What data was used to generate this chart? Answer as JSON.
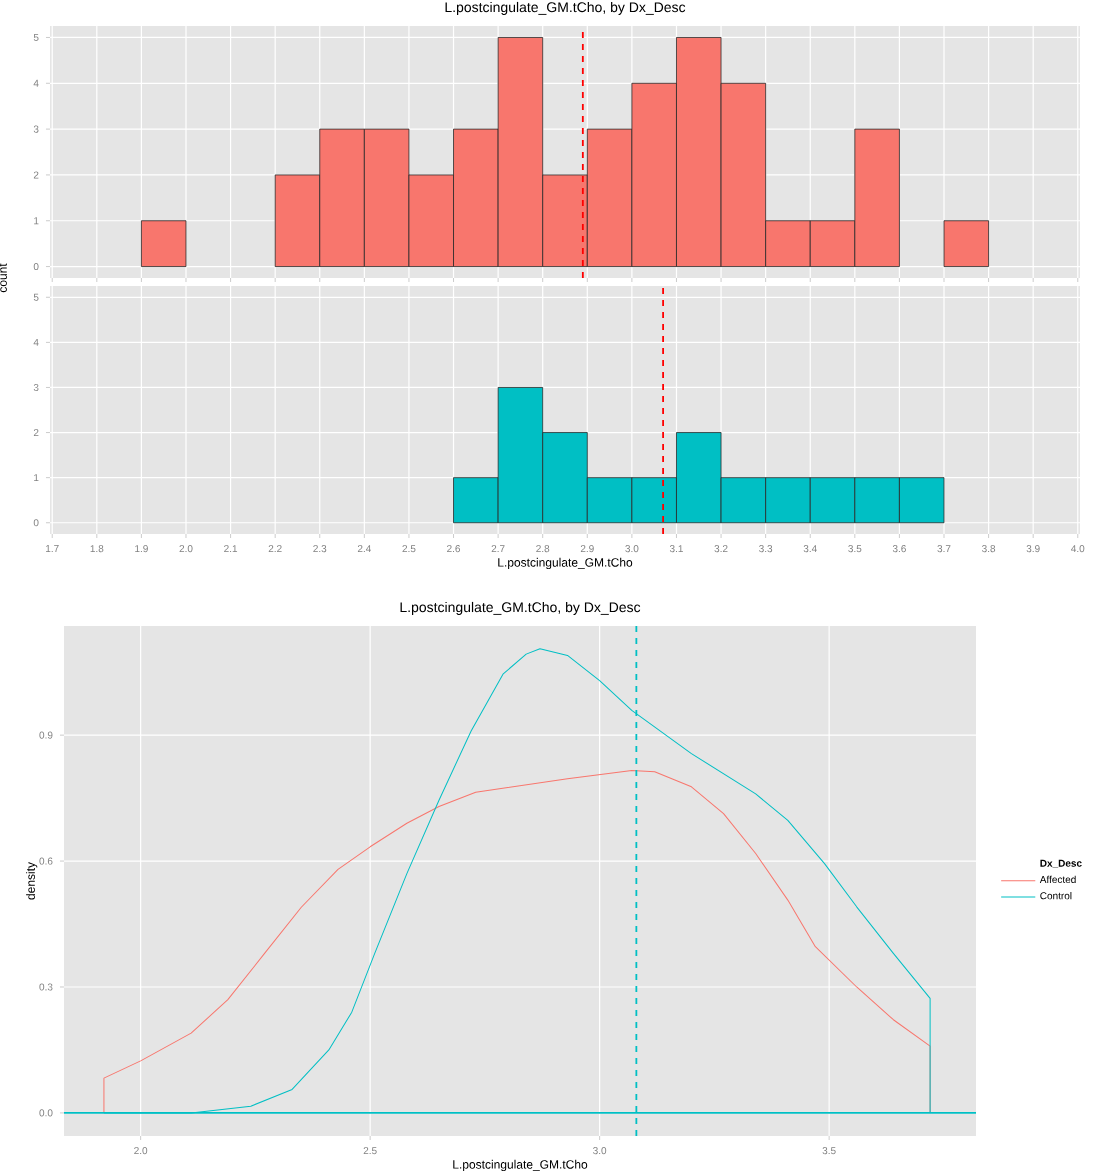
{
  "chart_data": [
    {
      "type": "histogram",
      "title": "L.postcingulate_GM.tCho, by Dx_Desc",
      "ylabel": "count",
      "tick_labels": "y",
      "color": "#f8766d",
      "grid": true,
      "bins": [
        1.8,
        1.9,
        2.0,
        2.1,
        2.2,
        2.3,
        2.4,
        2.5,
        2.6,
        2.7,
        2.8,
        2.9,
        3.0,
        3.1,
        3.2,
        3.3,
        3.4,
        3.5,
        3.6,
        3.7,
        3.8,
        3.9
      ],
      "values": [
        0,
        1,
        0,
        0,
        2,
        3,
        3,
        2,
        3,
        5,
        2,
        3,
        4,
        5,
        4,
        1,
        1,
        3,
        0,
        1,
        0
      ],
      "xlim": [
        1.695,
        4.005
      ],
      "xticks": [
        1.7,
        1.8,
        1.9,
        2,
        2.1,
        2.2,
        2.3,
        2.4,
        2.5,
        2.6,
        2.7,
        2.8,
        2.9,
        3,
        3.1,
        3.2,
        3.3,
        3.4,
        3.5,
        3.6,
        3.7,
        3.8,
        3.9,
        4
      ],
      "ylim": [
        -0.25,
        5.25
      ],
      "yticks": [
        0,
        1,
        2,
        3,
        4,
        5
      ],
      "ref_lines": [
        {
          "axis": "x",
          "value": 2.89,
          "color": "#ff0000",
          "line_style": "dashed"
        }
      ]
    },
    {
      "type": "histogram",
      "xlabel": "L.postcingulate_GM.tCho",
      "color": "#00bfc4",
      "grid": true,
      "bins": [
        1.8,
        1.9,
        2.0,
        2.1,
        2.2,
        2.3,
        2.4,
        2.5,
        2.6,
        2.7,
        2.8,
        2.9,
        3.0,
        3.1,
        3.2,
        3.3,
        3.4,
        3.5,
        3.6,
        3.7,
        3.8,
        3.9
      ],
      "values": [
        0,
        0,
        0,
        0,
        0,
        0,
        0,
        0,
        1,
        3,
        2,
        1,
        1,
        2,
        1,
        1,
        1,
        1,
        1,
        0,
        0
      ],
      "xlim": [
        1.695,
        4.005
      ],
      "xticks": [
        1.7,
        1.8,
        1.9,
        {
          "value": 2.0,
          "label": "2.0"
        },
        2.1,
        2.2,
        2.3,
        2.4,
        2.5,
        2.6,
        2.7,
        2.8,
        2.9,
        {
          "value": 3.0,
          "label": "3.0"
        },
        3.1,
        3.2,
        3.3,
        3.4,
        3.5,
        3.6,
        3.7,
        3.8,
        3.9,
        {
          "value": 4.0,
          "label": "4.0"
        }
      ],
      "ylim": [
        -0.25,
        5.25
      ],
      "yticks": [
        0,
        1,
        2,
        3,
        4,
        5
      ],
      "ref_lines": [
        {
          "axis": "x",
          "value": 3.07,
          "color": "#ff0000",
          "line_style": "dashed"
        }
      ]
    },
    {
      "type": "line",
      "title": "L.postcingulate_GM.tCho, by Dx_Desc",
      "xlabel": "L.postcingulate_GM.tCho",
      "ylabel": "density",
      "legend_title": "Dx_Desc",
      "legend": "right",
      "grid": true,
      "xlim": [
        1.833,
        3.82
      ],
      "xticks": [
        {
          "value": 2.0,
          "label": "2.0"
        },
        2.5,
        {
          "value": 3.0,
          "label": "3.0"
        },
        3.5
      ],
      "ylim": [
        -0.055,
        1.16
      ],
      "yticks": [
        {
          "value": 0,
          "label": "0.0"
        },
        0.3,
        0.6,
        0.9
      ],
      "ref_lines": [
        {
          "axis": "x",
          "value": 3.08,
          "color": "#00bfc4",
          "line_style": "dashed"
        },
        {
          "axis": "y",
          "value": 0,
          "color": "#00bfc4",
          "line_style": "solid"
        }
      ],
      "series": [
        {
          "name": "Affected",
          "color": "#f8766d",
          "x": [
            1.92,
            1.92,
            2.0,
            2.11,
            2.19,
            2.27,
            2.35,
            2.43,
            2.5,
            2.58,
            2.65,
            2.73,
            2.8,
            2.93,
            3.07,
            3.12,
            3.2,
            3.27,
            3.34,
            3.41,
            3.47,
            3.56,
            3.64,
            3.72,
            3.72
          ],
          "values": [
            0,
            0.083,
            0.124,
            0.19,
            0.27,
            0.38,
            0.49,
            0.58,
            0.634,
            0.69,
            0.73,
            0.764,
            0.775,
            0.796,
            0.816,
            0.813,
            0.777,
            0.713,
            0.618,
            0.507,
            0.396,
            0.3,
            0.222,
            0.159,
            0
          ]
        },
        {
          "name": "Control",
          "color": "#00bfc4",
          "x": [
            1.92,
            2.11,
            2.24,
            2.33,
            2.41,
            2.46,
            2.51,
            2.58,
            2.65,
            2.72,
            2.79,
            2.84,
            2.87,
            2.93,
            3.0,
            3.07,
            3.2,
            3.34,
            3.41,
            3.49,
            3.56,
            3.64,
            3.72,
            3.72
          ],
          "values": [
            0,
            0,
            0.016,
            0.056,
            0.15,
            0.24,
            0.38,
            0.57,
            0.745,
            0.91,
            1.046,
            1.093,
            1.106,
            1.09,
            1.03,
            0.959,
            0.856,
            0.76,
            0.697,
            0.594,
            0.491,
            0.38,
            0.273,
            0
          ]
        }
      ]
    }
  ]
}
